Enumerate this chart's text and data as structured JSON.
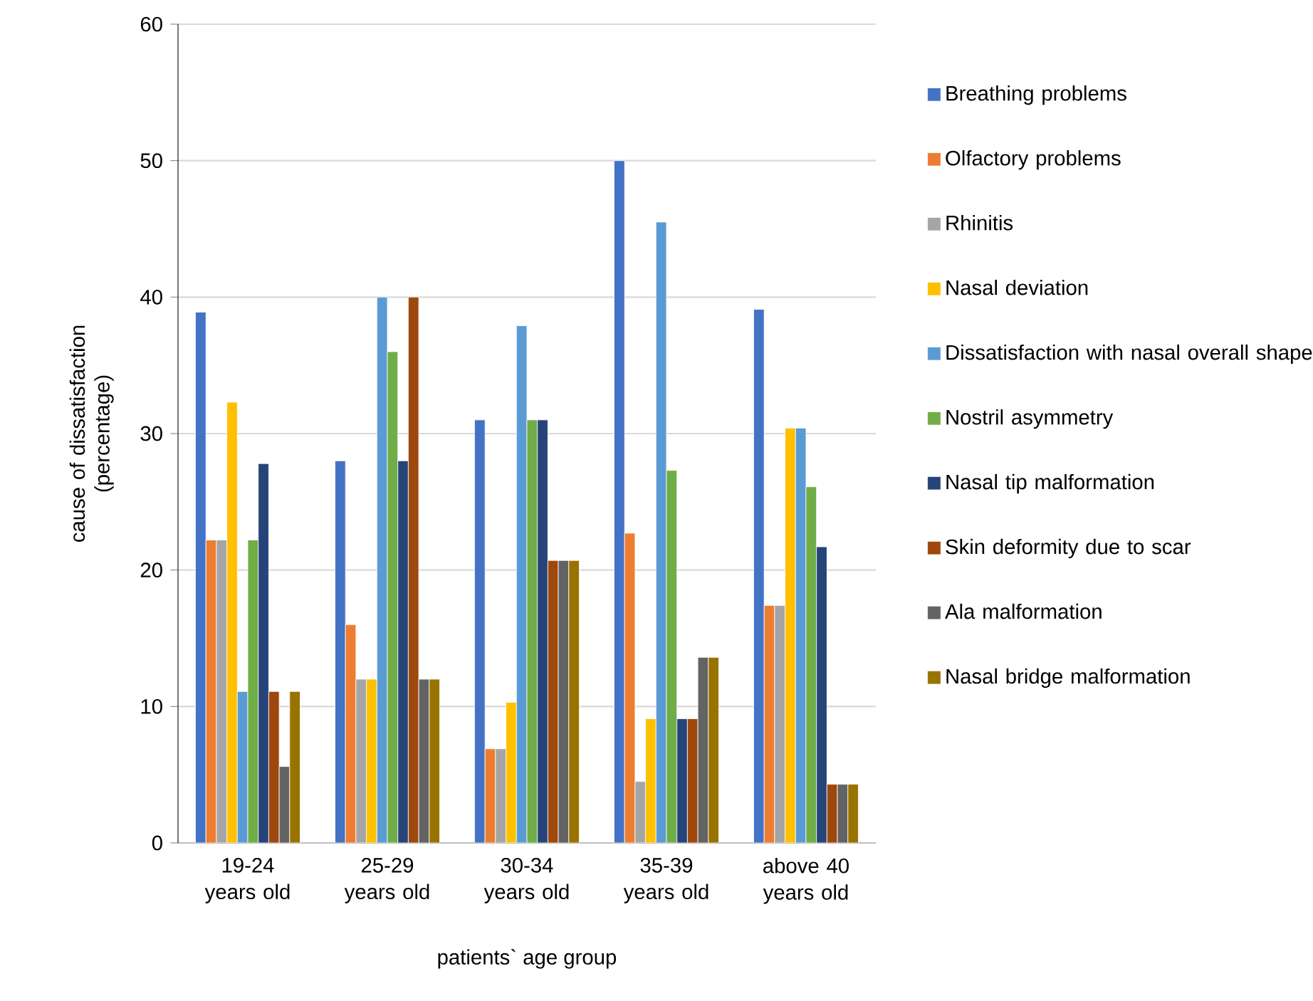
{
  "chart_data": {
    "type": "bar",
    "xlabel": "patients` age group",
    "ylabel": "cause of dissatisfaction (percentage)",
    "categories": [
      "19-24 years old",
      "25-29 years old",
      "30-34 years old",
      "35-39 years old",
      "above 40 years old"
    ],
    "series": [
      {
        "name": "Breathing problems",
        "color": "#4472c4",
        "values": [
          38.9,
          28,
          31,
          50,
          39.1
        ]
      },
      {
        "name": "Olfactory problems",
        "color": "#ed7d31",
        "values": [
          22.2,
          16,
          6.9,
          22.7,
          17.4
        ]
      },
      {
        "name": "Rhinitis",
        "color": "#a5a5a5",
        "values": [
          22.2,
          12,
          6.9,
          4.5,
          17.4
        ]
      },
      {
        "name": "Nasal deviation",
        "color": "#ffc000",
        "values": [
          32.3,
          12,
          10.3,
          9.1,
          30.4
        ]
      },
      {
        "name": "Dissatisfaction with nasal overall shape",
        "color": "#5b9bd5",
        "values": [
          11.1,
          40,
          37.9,
          45.5,
          30.4
        ]
      },
      {
        "name": "Nostril asymmetry",
        "color": "#70ad47",
        "values": [
          22.2,
          36,
          31,
          27.3,
          26.1
        ]
      },
      {
        "name": "Nasal tip malformation",
        "color": "#264478",
        "values": [
          27.8,
          28,
          31,
          9.1,
          21.7
        ]
      },
      {
        "name": "Skin deformity due to scar",
        "color": "#9e480e",
        "values": [
          11.1,
          40,
          20.7,
          9.1,
          4.3
        ]
      },
      {
        "name": "Ala malformation",
        "color": "#636363",
        "values": [
          5.6,
          12,
          20.7,
          13.6,
          4.3
        ]
      },
      {
        "name": "Nasal bridge malformation",
        "color": "#997300",
        "values": [
          11.1,
          12,
          20.7,
          13.6,
          4.3
        ]
      }
    ],
    "ylim": [
      0,
      60
    ],
    "yticks": [
      0,
      10,
      20,
      30,
      40,
      50,
      60
    ],
    "grid": "y",
    "legend": "right"
  }
}
